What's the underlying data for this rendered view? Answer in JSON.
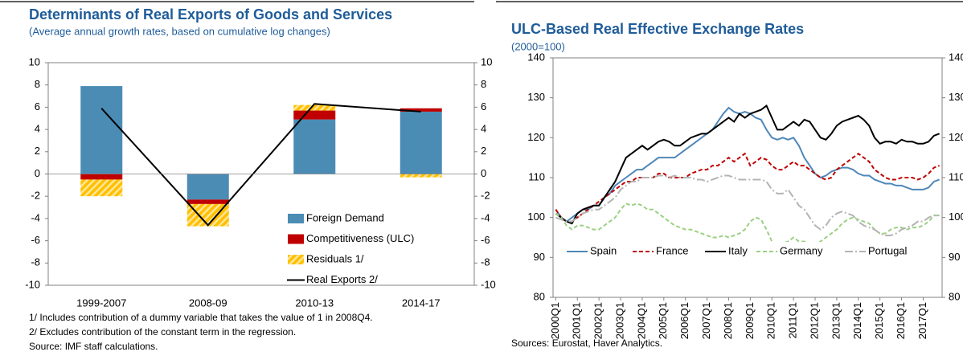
{
  "chart_data": [
    {
      "type": "bar",
      "stacked": true,
      "title": "Determinants of Real Exports of Goods and Services",
      "subtitle": "(Average annual growth rates, based on cumulative log changes)",
      "categories": [
        "1999-2007",
        "2008-09",
        "2010-13",
        "2014-17"
      ],
      "series": [
        {
          "name": "Foreign Demand",
          "color": "#4b8cb5",
          "values": [
            7.9,
            -2.3,
            4.9,
            5.6
          ]
        },
        {
          "name": "Competitiveness (ULC)",
          "color": "#c00000",
          "values": [
            -0.5,
            -0.4,
            0.8,
            0.3
          ]
        },
        {
          "name": "Residuals 1/",
          "color": "#ffc000",
          "pattern": "hatch",
          "values": [
            -1.5,
            -2.0,
            0.5,
            -0.3
          ]
        },
        {
          "name": "Real Exports 2/",
          "color": "#000000",
          "type": "line",
          "values": [
            5.9,
            -4.6,
            6.3,
            5.6
          ]
        }
      ],
      "ylim": [
        -10,
        10
      ],
      "yticks": [
        -10,
        -8,
        -6,
        -4,
        -2,
        0,
        2,
        4,
        6,
        8,
        10
      ],
      "y2lim": [
        -10,
        10
      ],
      "y2ticks": [
        -10,
        -8,
        -6,
        -4,
        -2,
        0,
        2,
        4,
        6,
        8,
        10
      ],
      "grid": false,
      "legend": "right",
      "notes": [
        "1/ Includes contribution of a dummy variable that takes the value of 1 in 2008Q4.",
        "2/ Excludes contribution of the constant term in the regression.",
        "Source: IMF staff calculations."
      ]
    },
    {
      "type": "line",
      "title": "ULC-Based Real Effective Exchange Rates",
      "subtitle": "(2000=100)",
      "categories": [
        "2000Q1",
        null,
        null,
        null,
        "2001Q1",
        null,
        null,
        null,
        "2002Q1",
        null,
        null,
        null,
        "2003Q1",
        null,
        null,
        null,
        "2004Q1",
        null,
        null,
        null,
        "2005Q1",
        null,
        null,
        null,
        "2006Q1",
        null,
        null,
        null,
        "2007Q1",
        null,
        null,
        null,
        "2008Q1",
        null,
        null,
        null,
        "2009Q1",
        null,
        null,
        null,
        "2010Q1",
        null,
        null,
        null,
        "2011Q1",
        null,
        null,
        null,
        "2012Q1",
        null,
        null,
        null,
        "2013Q1",
        null,
        null,
        null,
        "2014Q1",
        null,
        null,
        null,
        "2015Q1",
        null,
        null,
        null,
        "2016Q1",
        null,
        null,
        null,
        "2017Q1",
        null,
        null,
        null
      ],
      "series": [
        {
          "name": "Spain",
          "color": "#4f87b8",
          "dash": "solid",
          "values": [
            102,
            100,
            99,
            100,
            101,
            102,
            102,
            103,
            103,
            105,
            106,
            108,
            109,
            110,
            111,
            112,
            112,
            113,
            114,
            115,
            115,
            115,
            115,
            116,
            117,
            118,
            119,
            120,
            121,
            122,
            124,
            126,
            127.5,
            126.5,
            126,
            126.5,
            126,
            125,
            124.5,
            122,
            120,
            119.5,
            120,
            119.5,
            120,
            118,
            115,
            113,
            111,
            110,
            110.5,
            111.5,
            112,
            112.5,
            112.5,
            112,
            111,
            110.5,
            110.5,
            109.5,
            109,
            108.5,
            108.5,
            108,
            108,
            107.5,
            107,
            107,
            107,
            107.5,
            109,
            109.5
          ]
        },
        {
          "name": "France",
          "color": "#c00000",
          "dash": "dashed",
          "values": [
            102,
            100,
            99,
            99,
            100,
            101,
            102,
            103,
            104,
            105,
            106,
            107,
            108,
            109,
            109,
            110,
            110,
            110,
            110,
            111,
            111,
            110,
            110,
            110,
            110,
            111,
            111.5,
            112,
            112,
            113,
            113,
            114,
            115,
            114,
            115,
            116,
            113,
            114,
            115,
            114.5,
            113,
            112,
            112,
            113,
            114,
            113,
            113,
            112,
            111,
            110,
            109.5,
            110,
            112,
            113,
            114,
            115,
            116,
            115,
            114,
            112,
            111,
            110,
            109.5,
            109.5,
            110,
            110,
            110,
            109.5,
            110,
            111,
            112.5,
            113
          ]
        },
        {
          "name": "Italy",
          "color": "#000000",
          "dash": "solid",
          "values": [
            101,
            100,
            99,
            98.5,
            101,
            102,
            102.5,
            103,
            103,
            105,
            107,
            109,
            112,
            115,
            116,
            117,
            118,
            117,
            118,
            119,
            119.5,
            119,
            118,
            118,
            119,
            120,
            120.5,
            121,
            121,
            122,
            123,
            124,
            125,
            124,
            126,
            125,
            126,
            126.5,
            127,
            128,
            125,
            122,
            122,
            123,
            124,
            123,
            124.5,
            124,
            122,
            120,
            119.5,
            121,
            123,
            124,
            124.5,
            125,
            125.5,
            124.5,
            123,
            120,
            118.5,
            119,
            119,
            118.5,
            119.5,
            119,
            119,
            118.5,
            118.5,
            119,
            120.5,
            121
          ]
        },
        {
          "name": "Germany",
          "color": "#9bd083",
          "dash": "dashed",
          "values": [
            101,
            100,
            98,
            97,
            98,
            98,
            97.5,
            97,
            97,
            98,
            99,
            100,
            102,
            103.5,
            103,
            103.5,
            103,
            102,
            102,
            101,
            100,
            99,
            98,
            97.5,
            97,
            97,
            96.5,
            96,
            95.5,
            95,
            95,
            95.5,
            95,
            95.5,
            96,
            97,
            99,
            100,
            99.5,
            97,
            94,
            93,
            93.5,
            94,
            95,
            94,
            94,
            93.5,
            93,
            94,
            95,
            96,
            97,
            98.5,
            99.5,
            100,
            99.5,
            99,
            98.5,
            97,
            96,
            96,
            97,
            97.5,
            97.5,
            97,
            97.5,
            97.5,
            98,
            99,
            100.5,
            100.5
          ]
        },
        {
          "name": "Portugal",
          "color": "#b4b4b4",
          "dash": "dashdot",
          "values": [
            100,
            99.5,
            99,
            99,
            100,
            101,
            101.5,
            102,
            102,
            103,
            104,
            105,
            107,
            108,
            109,
            109,
            110,
            110,
            110,
            110.5,
            110.5,
            110,
            110.5,
            110,
            110,
            110,
            109.5,
            109.5,
            109,
            109.5,
            110,
            110.5,
            110.5,
            110,
            109.5,
            109.5,
            109.5,
            109.5,
            109.5,
            109,
            107,
            106,
            106,
            107,
            105,
            103,
            102,
            100,
            98,
            97,
            98,
            100,
            101,
            101.5,
            101,
            100.5,
            99,
            98,
            97.5,
            97,
            96,
            95.5,
            95.5,
            96,
            97,
            97.5,
            98,
            99,
            99,
            100,
            100.5,
            100.5
          ]
        }
      ],
      "ylim": [
        80,
        140
      ],
      "yticks": [
        80,
        90,
        100,
        110,
        120,
        130,
        140
      ],
      "y2lim": [
        80,
        140
      ],
      "y2ticks": [
        80,
        90,
        100,
        110,
        120,
        130,
        140
      ],
      "grid": false,
      "legend": "bottom",
      "notes": [
        "Sources: Eurostat, Haver Analytics."
      ]
    }
  ]
}
